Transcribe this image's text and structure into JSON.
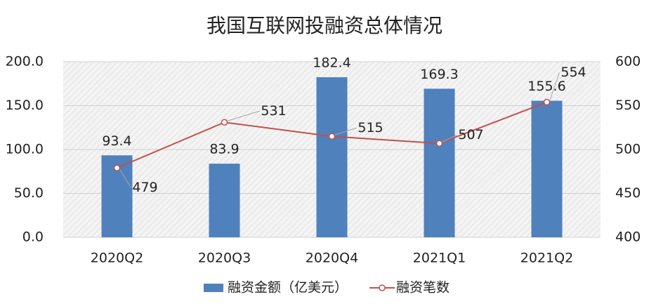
{
  "chart_data": {
    "type": "bar-line",
    "title": "我国互联网投融资总体情况",
    "categories": [
      "2020Q2",
      "2020Q3",
      "2020Q4",
      "2021Q1",
      "2021Q2"
    ],
    "series": [
      {
        "name": "融资金额（亿美元）",
        "type": "bar",
        "color": "#4f81bd",
        "values": [
          93.4,
          83.9,
          182.4,
          169.3,
          155.6
        ]
      },
      {
        "name": "融资笔数",
        "type": "line",
        "axis": "y2",
        "color": "#c0504d",
        "values": [
          479,
          531,
          515,
          507,
          554
        ]
      }
    ],
    "ylim": [
      0,
      200
    ],
    "yticks": [
      {
        "value": 0,
        "label": "0.0"
      },
      {
        "value": 50,
        "label": "50.0"
      },
      {
        "value": 100,
        "label": "100.0"
      },
      {
        "value": 150,
        "label": "150.0"
      },
      {
        "value": 200,
        "label": "200.0"
      }
    ],
    "y2lim": [
      400,
      600
    ],
    "y2ticks": [
      400,
      450,
      500,
      550,
      600
    ],
    "grid": true,
    "legend": "bottom"
  }
}
